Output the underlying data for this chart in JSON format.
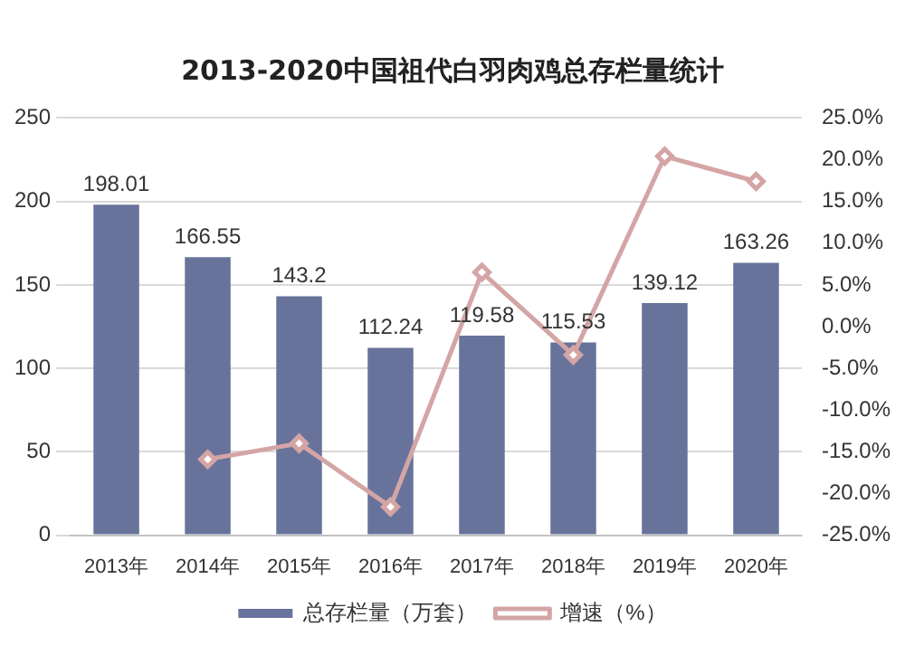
{
  "chart_data": {
    "type": "bar",
    "title": "2013-2020中国祖代白羽肉鸡总存栏量统计",
    "categories": [
      "2013年",
      "2014年",
      "2015年",
      "2016年",
      "2017年",
      "2018年",
      "2019年",
      "2020年"
    ],
    "series": [
      {
        "name": "总存栏量（万套）",
        "color": "#68739b",
        "values": [
          198.01,
          166.55,
          143.2,
          112.24,
          119.58,
          115.53,
          139.12,
          163.26
        ]
      },
      {
        "name": "增速（%）",
        "type": "line",
        "axis": "y2",
        "color": "#d4a5a5",
        "values": [
          null,
          -15.9,
          -14.0,
          -21.6,
          6.5,
          -3.4,
          20.4,
          17.4
        ]
      }
    ],
    "ylim": [
      0,
      250
    ],
    "yticks": [
      0,
      50,
      100,
      150,
      200,
      250
    ],
    "y2lim": [
      -25,
      25
    ],
    "y2ticks": [
      {
        "value": -25,
        "label": "-25.0%"
      },
      {
        "value": -20,
        "label": "-20.0%"
      },
      {
        "value": -15,
        "label": "-15.0%"
      },
      {
        "value": -10,
        "label": "-10.0%"
      },
      {
        "value": -5,
        "label": "-5.0%"
      },
      {
        "value": 0,
        "label": "0.0%"
      },
      {
        "value": 5,
        "label": "5.0%"
      },
      {
        "value": 10,
        "label": "10.0%"
      },
      {
        "value": 15,
        "label": "15.0%"
      },
      {
        "value": 20,
        "label": "20.0%"
      },
      {
        "value": 25,
        "label": "25.0%"
      }
    ],
    "value_labels": [
      "198.01",
      "166.55",
      "143.2",
      "112.24",
      "119.58",
      "115.53",
      "139.12",
      "163.26"
    ],
    "grid": "y",
    "legend": "bottom",
    "marker": "diamond",
    "line_style": "solid"
  }
}
